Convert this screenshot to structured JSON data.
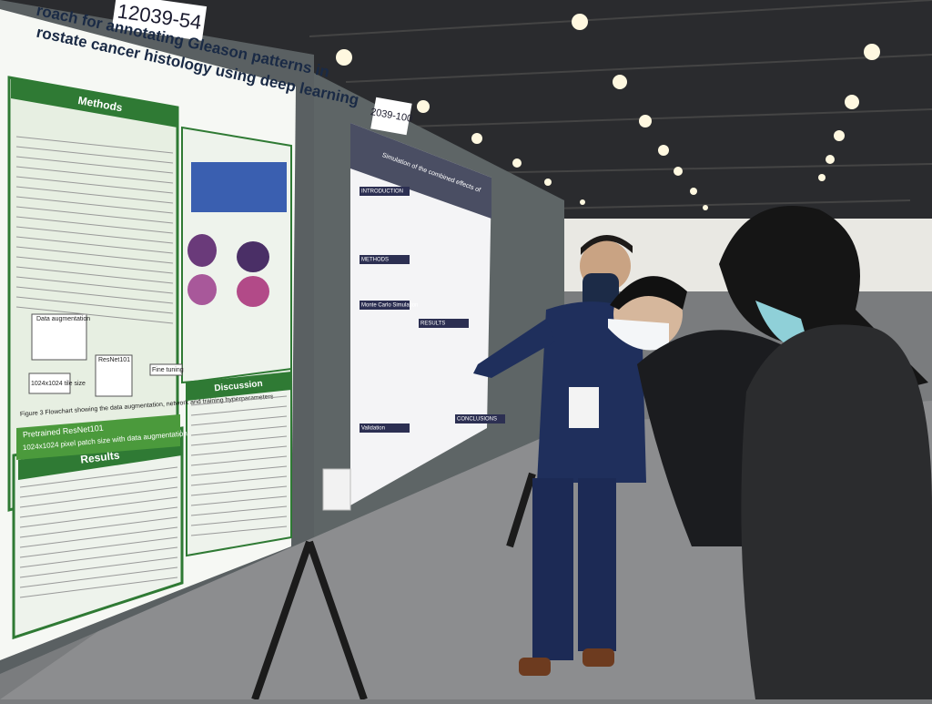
{
  "signs": [
    "12039-54",
    "2039-100"
  ],
  "poster_left": {
    "title_lines": [
      "roach for annotating Gleason patterns in",
      "rostate cancer histology using deep learning"
    ],
    "sections": [
      "Methods",
      "Results",
      "Discussion"
    ],
    "figure_caption": "Figure 3 Flowchart showing the data augmentation, network and training hyperparameters",
    "bullets": [
      "Pretrained ResNet101",
      "1024x1024 pixel patch size with data augmentation"
    ],
    "flow_labels": [
      "Data augmentation",
      "ResNet101",
      "Fine tuning",
      "1024x1024 tile size"
    ]
  },
  "poster_right": {
    "title": "Simulation of the combined effects of",
    "headers": [
      "INTRODUCTION",
      "METHODS",
      "Monte Carlo Simulation",
      "RESULTS",
      "CONCLUSIONS",
      "Validation"
    ]
  }
}
